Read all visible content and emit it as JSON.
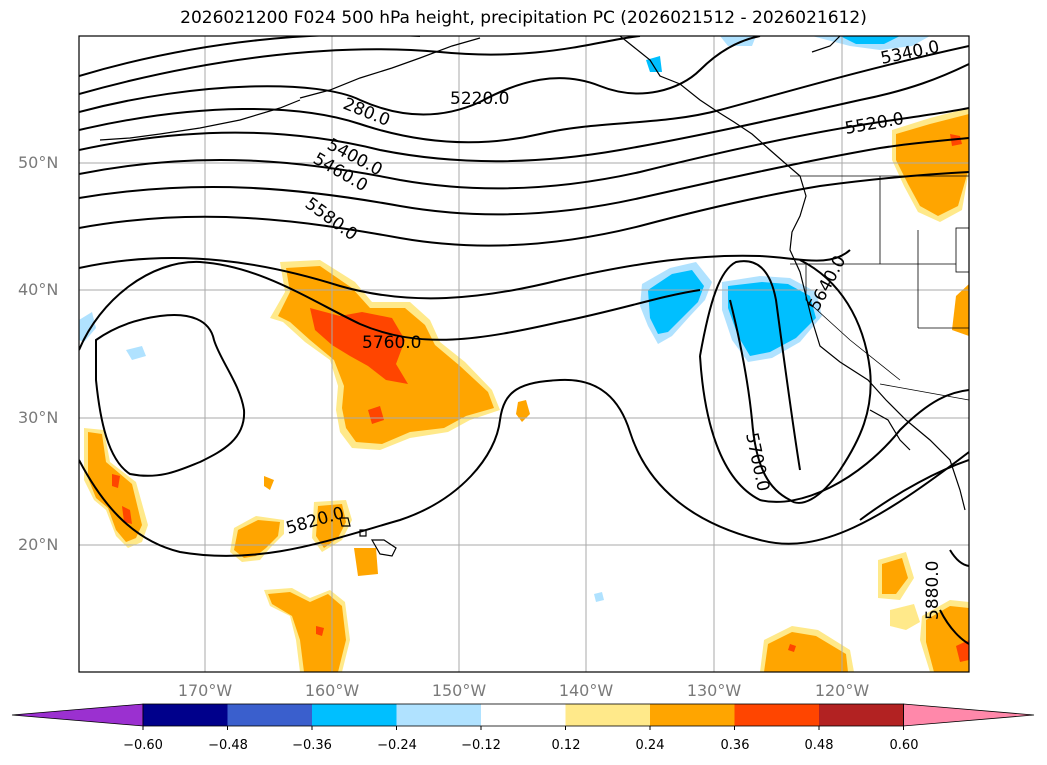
{
  "title": "2026021200 F024 500 hPa height, precipitation PC (2026021512 - 2026021612)",
  "lat_labels": [
    "50°N",
    "40°N",
    "30°N",
    "20°N"
  ],
  "lon_labels": [
    "170°W",
    "160°W",
    "150°W",
    "140°W",
    "130°W",
    "120°W"
  ],
  "contour_labels": [
    "5220.0",
    "5340.0",
    "280.0",
    "5400.0",
    "5460.0",
    "5520.0",
    "5580.0",
    "5640.0",
    "5760.0",
    "5700.0",
    "5820.0",
    "5880.0"
  ],
  "colorbar": {
    "tick_labels": [
      "−0.60",
      "−0.48",
      "−0.36",
      "−0.24",
      "−0.12",
      "0.12",
      "0.24",
      "0.36",
      "0.48",
      "0.60"
    ],
    "colors": [
      "#9b30d0",
      "#00008b",
      "#3a5fcd",
      "#00bfff",
      "#b0e2ff",
      "#ffffff",
      "#ffe98a",
      "#ffa500",
      "#ff4500",
      "#b22222",
      "#ff88aa"
    ]
  },
  "colors": {
    "height_contour": "#000000",
    "grid": "#aaaaaa",
    "coastline": "#000000"
  }
}
